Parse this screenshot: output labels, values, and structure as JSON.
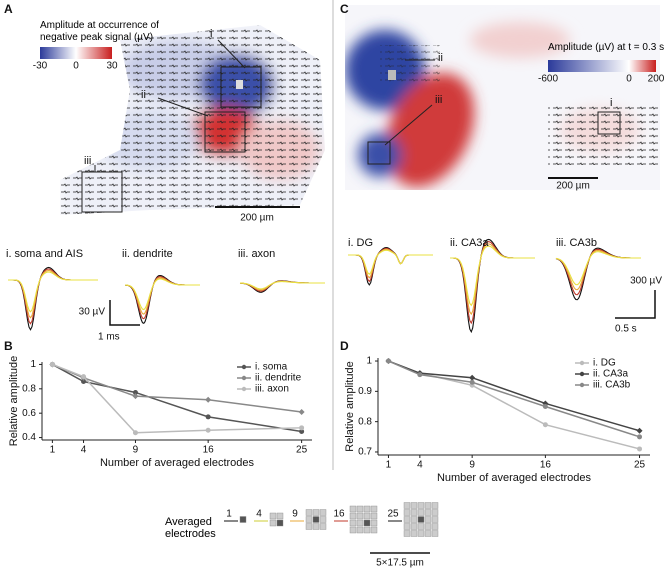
{
  "panel_labels": [
    "A",
    "B",
    "C",
    "D"
  ],
  "panel_a": {
    "colorbar_title": "Amplitude at occurrence of negative peak signal (µV)",
    "colorbar_ticks": [
      -30,
      0,
      30
    ],
    "region_labels": [
      "i",
      "ii",
      "iii"
    ],
    "scale_bar": "200 µm",
    "trace_titles": [
      "i. soma and AIS",
      "ii. dendrite",
      "iii. axon"
    ],
    "amplitude_scale": "30 µV",
    "time_scale": "1 ms"
  },
  "panel_c": {
    "colorbar_title": "Amplitude (µV) at t = 0.3 s",
    "colorbar_ticks": [
      -600,
      0,
      200
    ],
    "region_labels": [
      "i",
      "ii",
      "iii"
    ],
    "scale_bar": "200 µm",
    "trace_titles": [
      "i. DG",
      "ii. CA3a",
      "iii. CA3b"
    ],
    "amplitude_scale": "300 µV",
    "time_scale": "0.5 s"
  },
  "chart_data": [
    {
      "type": "line",
      "y_label": "Relative amplitude",
      "x_label": "Number of averaged electrodes",
      "x": [
        1,
        4,
        9,
        16,
        25
      ],
      "xlim": [
        0,
        26
      ],
      "xticks": [
        1,
        4,
        9,
        16,
        25
      ],
      "ylim": [
        0.38,
        1.02
      ],
      "yticks": [
        0.4,
        0.6,
        0.8,
        1
      ],
      "legend": "upper right",
      "series": [
        {
          "name": "i. soma",
          "color": "#555555",
          "values": [
            1,
            0.86,
            0.77,
            0.57,
            0.45
          ]
        },
        {
          "name": "ii. dendrite",
          "color": "#888888",
          "values": [
            1,
            0.89,
            0.74,
            0.71,
            0.61
          ]
        },
        {
          "name": "iii. axon",
          "color": "#bbbbbb",
          "values": [
            1,
            0.9,
            0.44,
            0.46,
            0.48
          ]
        }
      ]
    },
    {
      "type": "line",
      "y_label": "Relative amplitude",
      "x_label": "Number of averaged electrodes",
      "x": [
        1,
        4,
        9,
        16,
        25
      ],
      "xlim": [
        0,
        26
      ],
      "xticks": [
        1,
        4,
        9,
        16,
        25
      ],
      "ylim": [
        0.69,
        1.01
      ],
      "yticks": [
        0.7,
        0.8,
        0.9,
        1
      ],
      "legend": "upper right",
      "series": [
        {
          "name": "i. DG",
          "color": "#bbbbbb",
          "values": [
            1,
            0.96,
            0.92,
            0.79,
            0.71
          ]
        },
        {
          "name": "ii. CA3a",
          "color": "#444444",
          "values": [
            1,
            0.96,
            0.945,
            0.86,
            0.77
          ]
        },
        {
          "name": "iii. CA3b",
          "color": "#888888",
          "values": [
            1,
            0.955,
            0.93,
            0.85,
            0.75
          ]
        }
      ]
    }
  ],
  "electrode_legend": {
    "title": "Averaged electrodes",
    "counts": [
      1,
      4,
      9,
      16,
      25
    ],
    "scale_bar": "5×17.5 µm"
  }
}
